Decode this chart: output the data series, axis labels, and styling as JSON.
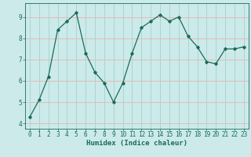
{
  "x": [
    0,
    1,
    2,
    3,
    4,
    5,
    6,
    7,
    8,
    9,
    10,
    11,
    12,
    13,
    14,
    15,
    16,
    17,
    18,
    19,
    20,
    21,
    22,
    23
  ],
  "y": [
    4.3,
    5.1,
    6.2,
    8.4,
    8.8,
    9.2,
    7.3,
    6.4,
    5.9,
    5.0,
    5.9,
    7.3,
    8.5,
    8.8,
    9.1,
    8.8,
    9.0,
    8.1,
    7.6,
    6.9,
    6.8,
    7.5,
    7.5,
    7.6
  ],
  "line_color": "#1a6b5a",
  "marker": "D",
  "marker_size": 1.8,
  "bg_color": "#cceaea",
  "grid_color_h": "#e8b8b8",
  "grid_color_v": "#aad4d4",
  "xlabel": "Humidex (Indice chaleur)",
  "xlim": [
    -0.5,
    23.5
  ],
  "ylim": [
    3.75,
    9.65
  ],
  "yticks": [
    4,
    5,
    6,
    7,
    8,
    9
  ],
  "xticks": [
    0,
    1,
    2,
    3,
    4,
    5,
    6,
    7,
    8,
    9,
    10,
    11,
    12,
    13,
    14,
    15,
    16,
    17,
    18,
    19,
    20,
    21,
    22,
    23
  ],
  "tick_color": "#1a6b5a",
  "font_size_xlabel": 6.5,
  "font_size_ticks": 5.5
}
